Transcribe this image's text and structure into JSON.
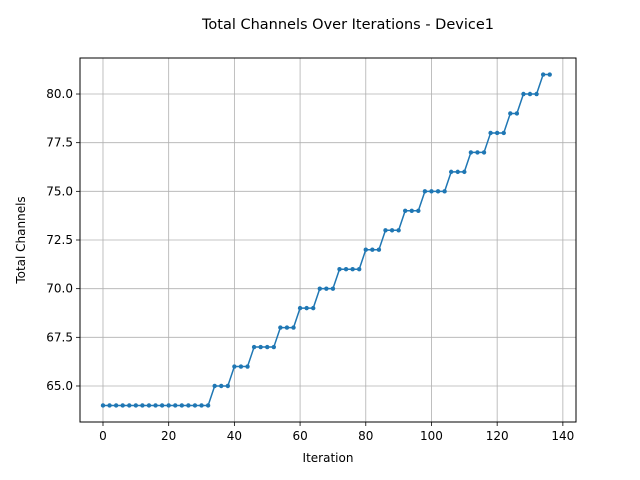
{
  "chart_data": {
    "type": "line",
    "title": "Total Channels Over Iterations - Device1",
    "xlabel": "Iteration",
    "ylabel": "Total Channels",
    "xlim": [
      -7,
      144
    ],
    "ylim": [
      63.15,
      81.85
    ],
    "xticks": [
      0,
      20,
      40,
      60,
      80,
      100,
      120,
      140
    ],
    "yticks": [
      65.0,
      67.5,
      70.0,
      72.5,
      75.0,
      77.5,
      80.0
    ],
    "ytick_labels": [
      "65.0",
      "67.5",
      "70.0",
      "72.5",
      "75.0",
      "77.5",
      "80.0"
    ],
    "xtick_labels": [
      "0",
      "20",
      "40",
      "60",
      "80",
      "100",
      "120",
      "140"
    ],
    "grid": true,
    "color": "#1f77b4",
    "marker": "circle",
    "series": [
      {
        "x": [
          0,
          2,
          4,
          6,
          8,
          10,
          12,
          14,
          16,
          18,
          20,
          22,
          24,
          26,
          28,
          30,
          32,
          34,
          36,
          38,
          40,
          42,
          44,
          46,
          48,
          50,
          52,
          54,
          56,
          58,
          60,
          62,
          64,
          66,
          68,
          70,
          72,
          74,
          76,
          78,
          80,
          82,
          84,
          86,
          88,
          90,
          92,
          94,
          96,
          98,
          100,
          102,
          104,
          106,
          108,
          110,
          112,
          114,
          116,
          118,
          120,
          122,
          124,
          126,
          128,
          130,
          132,
          134,
          136
        ],
        "y": [
          64,
          64,
          64,
          64,
          64,
          64,
          64,
          64,
          64,
          64,
          64,
          64,
          64,
          64,
          64,
          64,
          64,
          65,
          65,
          65,
          66,
          66,
          66,
          67,
          67,
          67,
          67,
          68,
          68,
          68,
          69,
          69,
          69,
          70,
          70,
          70,
          71,
          71,
          71,
          71,
          72,
          72,
          72,
          73,
          73,
          73,
          74,
          74,
          74,
          75,
          75,
          75,
          75,
          76,
          76,
          76,
          77,
          77,
          77,
          78,
          78,
          78,
          79,
          79,
          80,
          80,
          80,
          81,
          81
        ]
      }
    ]
  }
}
